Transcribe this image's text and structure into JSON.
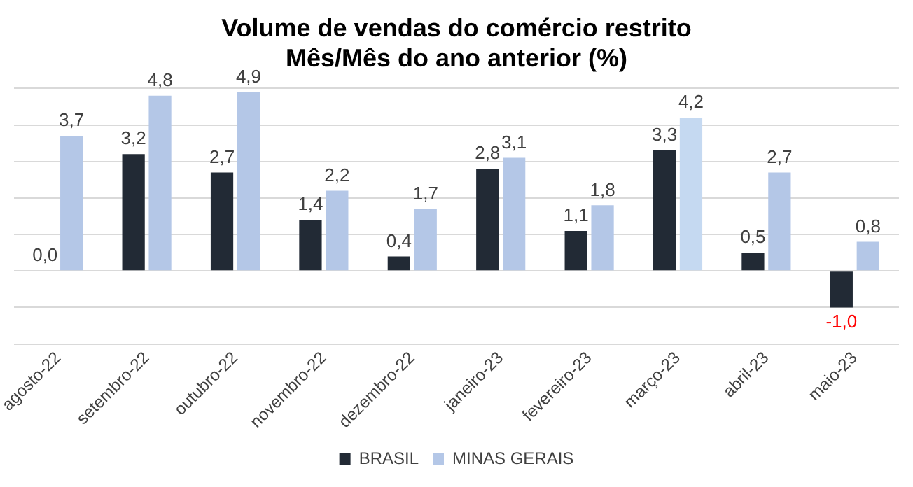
{
  "chart_data": {
    "type": "bar",
    "title": "Volume de vendas do comércio restrito\nMês/Mês do ano anterior (%)",
    "categories": [
      "agosto-22",
      "setembro-22",
      "outubro-22",
      "novembro-22",
      "dezembro-22",
      "janeiro-23",
      "fevereiro-23",
      "março-23",
      "abril-23",
      "maio-23"
    ],
    "series": [
      {
        "name": "BRASIL",
        "color": "#222a35",
        "values": [
          0.0,
          3.2,
          2.7,
          1.4,
          0.4,
          2.8,
          1.1,
          3.3,
          0.5,
          -1.0
        ],
        "value_labels": [
          "0,0",
          "3,2",
          "2,7",
          "1,4",
          "0,4",
          "2,8",
          "1,1",
          "3,3",
          "0,5",
          "-1,0"
        ]
      },
      {
        "name": "MINAS GERAIS",
        "color": "#b4c7e7",
        "colors": [
          "#b4c7e7",
          "#b4c7e7",
          "#b4c7e7",
          "#b4c7e7",
          "#b4c7e7",
          "#b4c7e7",
          "#b4c7e7",
          "#c5d9f1",
          "#b4c7e7",
          "#b4c7e7"
        ],
        "values": [
          3.7,
          4.8,
          4.9,
          2.2,
          1.7,
          3.1,
          1.8,
          4.2,
          2.7,
          0.8
        ],
        "value_labels": [
          "3,7",
          "4,8",
          "4,9",
          "2,2",
          "1,7",
          "3,1",
          "1,8",
          "4,2",
          "2,7",
          "0,8"
        ]
      }
    ],
    "ylim": [
      -2,
      5
    ],
    "yticks": [
      {
        "value": -2,
        "label": null
      },
      {
        "value": -1,
        "label": null
      },
      {
        "value": 0,
        "label": null
      },
      {
        "value": 1,
        "label": null
      },
      {
        "value": 2,
        "label": null
      },
      {
        "value": 3,
        "label": null
      },
      {
        "value": 4,
        "label": null
      },
      {
        "value": 5,
        "label": null
      }
    ],
    "tick_labels": "x",
    "grid": "y",
    "legend": "bottom"
  }
}
